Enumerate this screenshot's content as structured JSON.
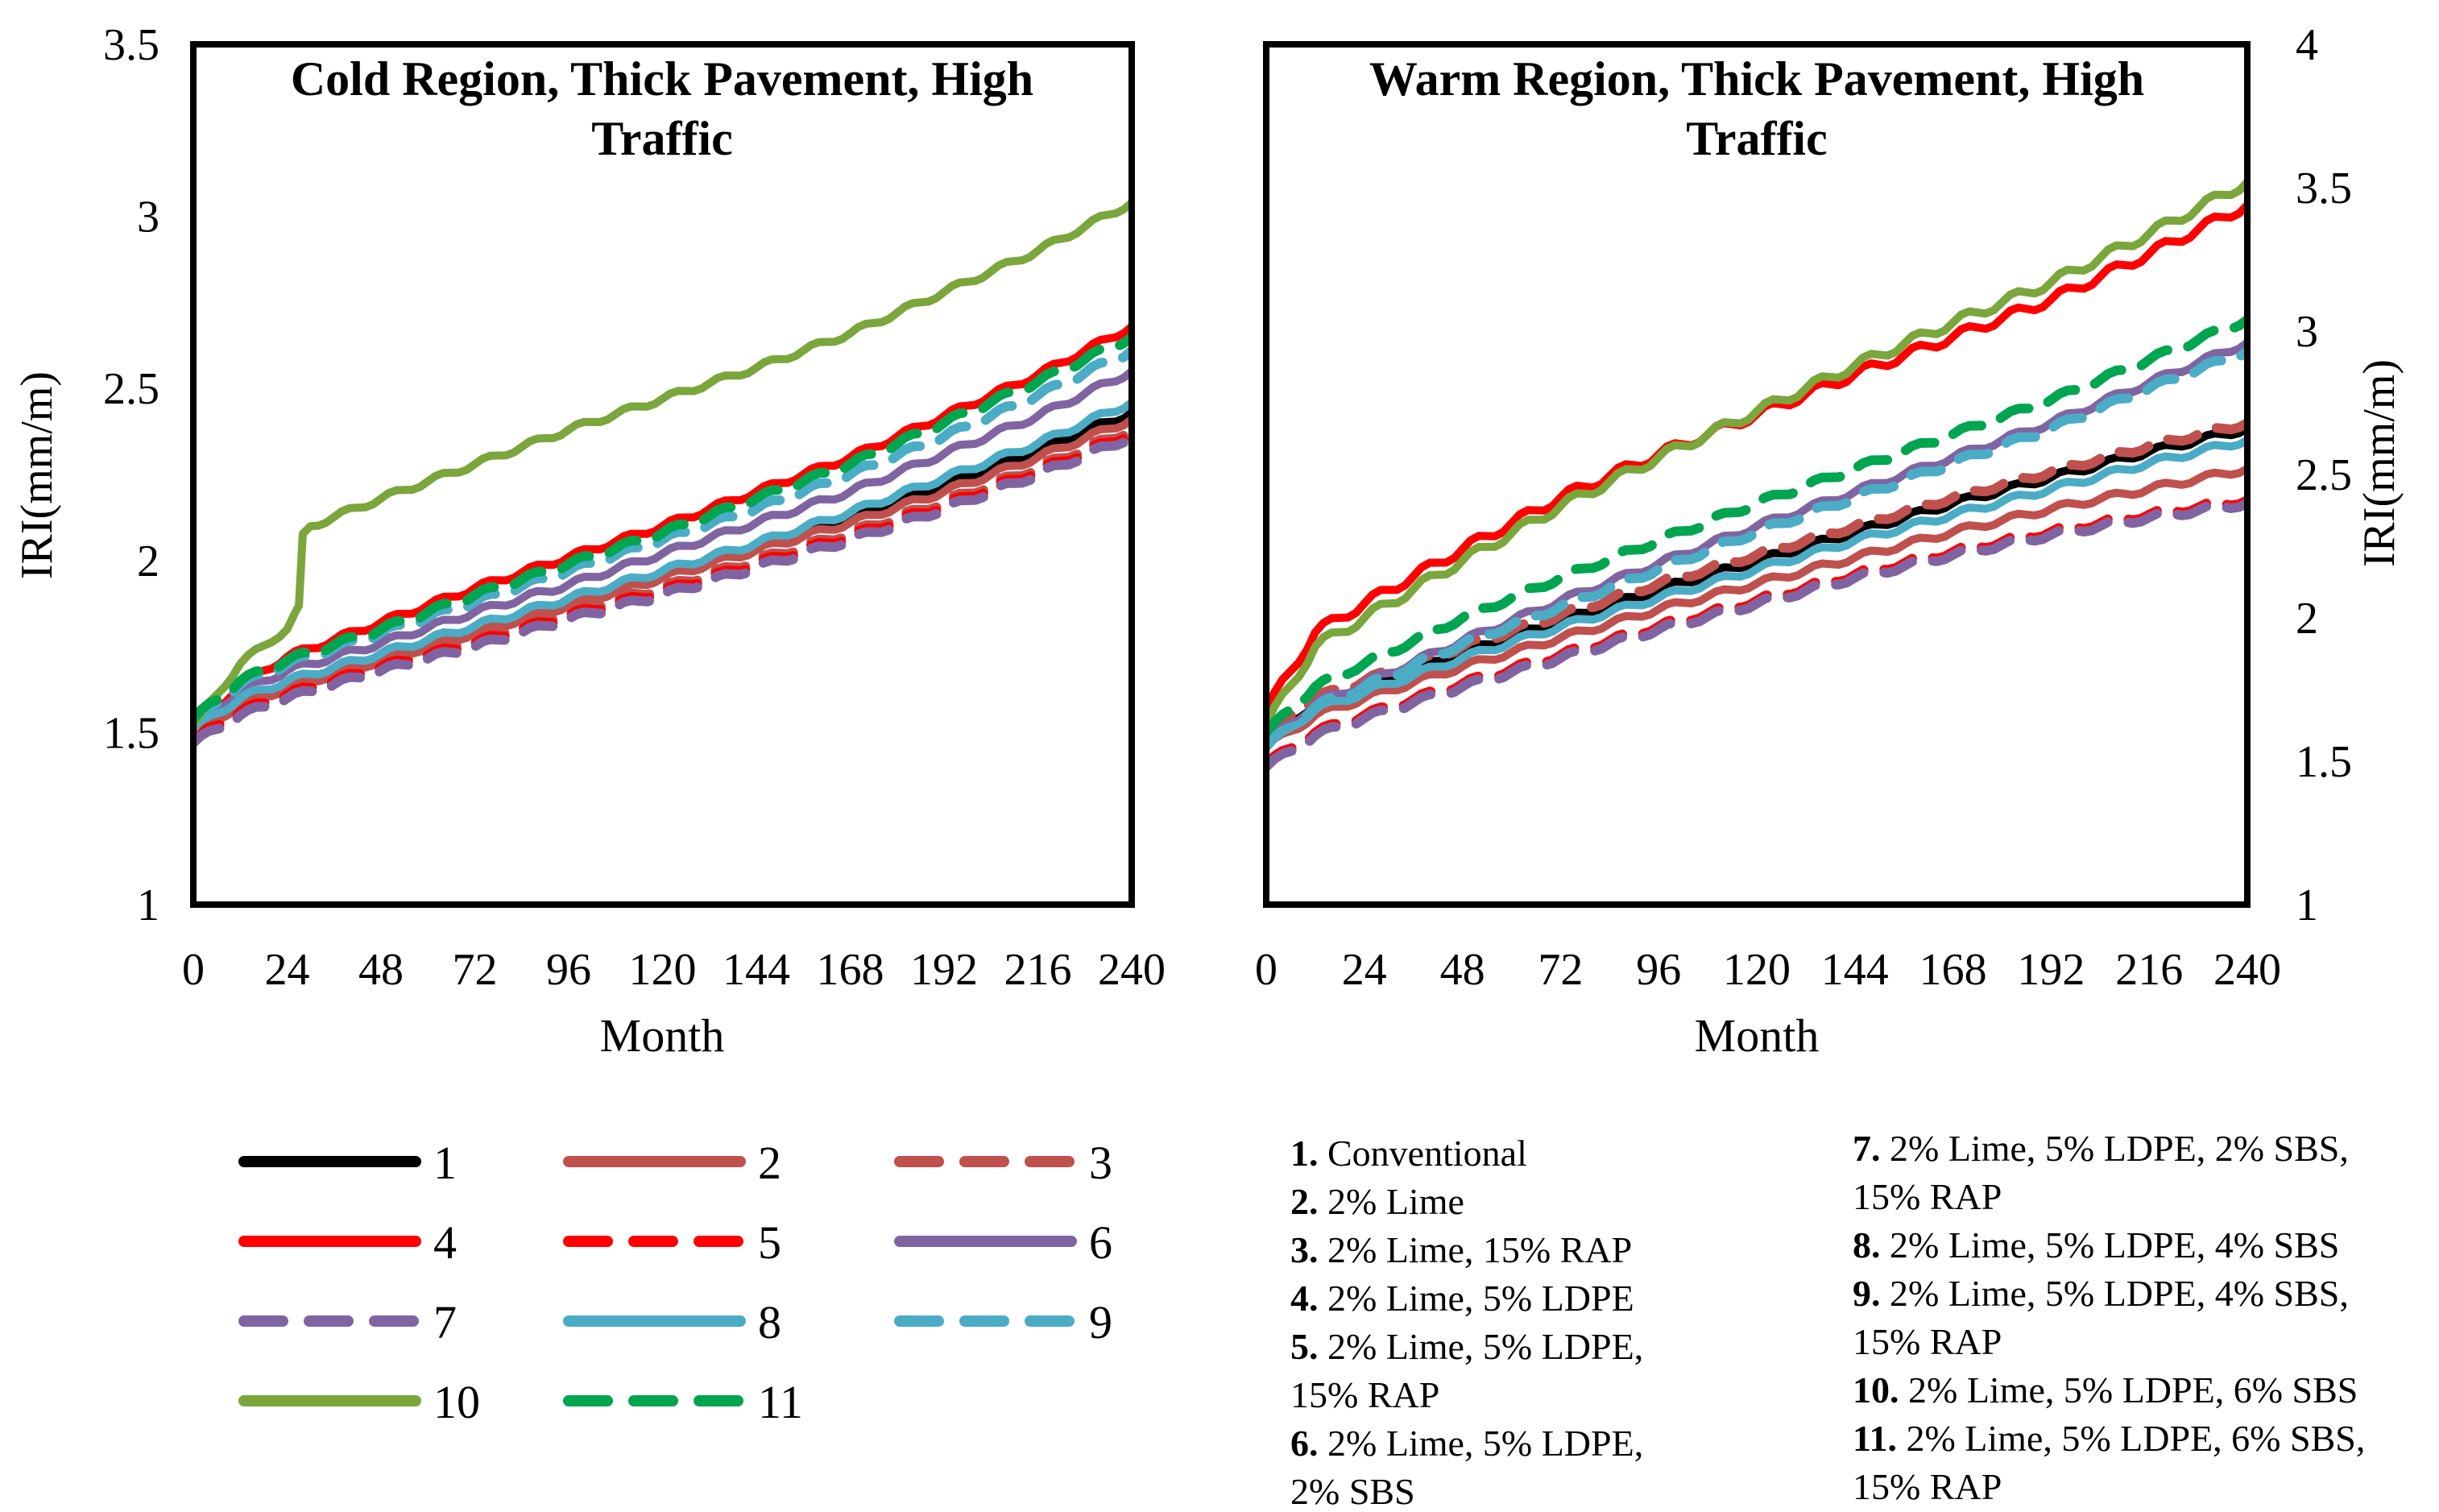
{
  "page": {
    "background": "#ffffff"
  },
  "chart_data": [
    {
      "type": "line",
      "title": "Cold Region, Thick Pavement, High Traffic",
      "title_lines": [
        "Cold Region, Thick Pavement, High",
        "Traffic"
      ],
      "xlabel": "Month",
      "ylabel": "IRI(mm/m)",
      "xlim": [
        0,
        240
      ],
      "ylim": [
        1,
        3.5
      ],
      "xticks": [
        0,
        24,
        48,
        72,
        96,
        120,
        144,
        168,
        192,
        216,
        240
      ],
      "ytick_values": [
        1,
        1.5,
        2,
        2.5,
        3,
        3.5
      ],
      "ytick_labels": [
        "1",
        "1.5",
        "2",
        "2.5",
        "3",
        "3.5"
      ],
      "y_axis_side": "left",
      "grid": false,
      "wiggle": 0.009,
      "series": [
        {
          "num": 1,
          "color": "#000000",
          "style": "solid",
          "x": [
            0,
            12,
            24,
            48,
            72,
            96,
            120,
            144,
            168,
            192,
            216,
            240
          ],
          "y": [
            1.49,
            1.59,
            1.64,
            1.72,
            1.8,
            1.88,
            1.96,
            2.04,
            2.13,
            2.22,
            2.32,
            2.43
          ]
        },
        {
          "num": 2,
          "color": "#C0504D",
          "style": "solid",
          "x": [
            0,
            12,
            24,
            48,
            72,
            96,
            120,
            144,
            168,
            192,
            216,
            240
          ],
          "y": [
            1.5,
            1.58,
            1.63,
            1.71,
            1.79,
            1.87,
            1.95,
            2.03,
            2.11,
            2.2,
            2.3,
            2.41
          ]
        },
        {
          "num": 3,
          "color": "#C0504D",
          "style": "dashed",
          "x": [
            0,
            12,
            24,
            48,
            72,
            96,
            120,
            144,
            168,
            192,
            216,
            240
          ],
          "y": [
            1.49,
            1.57,
            1.62,
            1.7,
            1.77,
            1.85,
            1.92,
            2.0,
            2.08,
            2.17,
            2.27,
            2.38
          ]
        },
        {
          "num": 4,
          "color": "#FF0000",
          "style": "solid",
          "x": [
            0,
            12,
            24,
            48,
            72,
            96,
            120,
            144,
            168,
            192,
            216,
            240
          ],
          "y": [
            1.5,
            1.64,
            1.72,
            1.82,
            1.92,
            2.01,
            2.1,
            2.2,
            2.3,
            2.42,
            2.54,
            2.68
          ]
        },
        {
          "num": 5,
          "color": "#FF0000",
          "style": "dashed",
          "x": [
            0,
            12,
            24,
            48,
            72,
            96,
            120,
            144,
            168,
            192,
            216,
            240
          ],
          "y": [
            1.48,
            1.56,
            1.61,
            1.69,
            1.76,
            1.84,
            1.91,
            1.99,
            2.07,
            2.16,
            2.26,
            2.37
          ]
        },
        {
          "num": 6,
          "color": "#8064A2",
          "style": "solid",
          "x": [
            0,
            12,
            24,
            48,
            72,
            96,
            120,
            144,
            168,
            192,
            216,
            240
          ],
          "y": [
            1.52,
            1.62,
            1.68,
            1.76,
            1.85,
            1.93,
            2.02,
            2.11,
            2.2,
            2.31,
            2.42,
            2.55
          ]
        },
        {
          "num": 7,
          "color": "#8064A2",
          "style": "dashed",
          "x": [
            0,
            12,
            24,
            48,
            72,
            96,
            120,
            144,
            168,
            192,
            216,
            240
          ],
          "y": [
            1.47,
            1.55,
            1.6,
            1.68,
            1.75,
            1.83,
            1.9,
            1.98,
            2.06,
            2.15,
            2.25,
            2.36
          ]
        },
        {
          "num": 8,
          "color": "#4BACC6",
          "style": "solid",
          "x": [
            0,
            12,
            24,
            48,
            72,
            96,
            120,
            144,
            168,
            192,
            216,
            240
          ],
          "y": [
            1.51,
            1.6,
            1.65,
            1.73,
            1.81,
            1.89,
            1.97,
            2.05,
            2.14,
            2.24,
            2.34,
            2.46
          ]
        },
        {
          "num": 9,
          "color": "#4BACC6",
          "style": "dashed",
          "x": [
            0,
            12,
            24,
            48,
            72,
            96,
            120,
            144,
            168,
            192,
            216,
            240
          ],
          "y": [
            1.53,
            1.64,
            1.7,
            1.79,
            1.88,
            1.97,
            2.06,
            2.15,
            2.25,
            2.36,
            2.48,
            2.61
          ]
        },
        {
          "num": 10,
          "color": "#7AA63C",
          "style": "solid",
          "x": [
            0,
            12,
            20,
            24,
            27,
            28,
            30,
            48,
            72,
            96,
            120,
            144,
            168,
            192,
            216,
            240
          ],
          "y": [
            1.52,
            1.7,
            1.77,
            1.8,
            1.86,
            2.07,
            2.1,
            2.18,
            2.28,
            2.38,
            2.47,
            2.56,
            2.66,
            2.78,
            2.9,
            3.04
          ]
        },
        {
          "num": 11,
          "color": "#00A550",
          "style": "dashed",
          "x": [
            0,
            12,
            24,
            48,
            72,
            96,
            120,
            144,
            168,
            192,
            216,
            240
          ],
          "y": [
            1.54,
            1.65,
            1.71,
            1.8,
            1.9,
            1.99,
            2.08,
            2.18,
            2.28,
            2.4,
            2.52,
            2.65
          ]
        }
      ]
    },
    {
      "type": "line",
      "title": "Warm Region, Thick Pavement, High Traffic",
      "title_lines": [
        "Warm Region, Thick Pavement, High",
        "Traffic"
      ],
      "xlabel": "Month",
      "ylabel": "IRI(mm/m)",
      "xlim": [
        0,
        240
      ],
      "ylim": [
        1,
        4
      ],
      "xticks": [
        0,
        24,
        48,
        72,
        96,
        120,
        144,
        168,
        192,
        216,
        240
      ],
      "ytick_values": [
        1,
        1.5,
        2,
        2.5,
        3,
        3.5,
        4
      ],
      "ytick_labels": [
        "1",
        "1.5",
        "2",
        "2.5",
        "3",
        "3.5",
        "4"
      ],
      "y_axis_side": "right",
      "grid": false,
      "wiggle": 0.011,
      "series": [
        {
          "num": 1,
          "color": "#000000",
          "style": "solid",
          "x": [
            0,
            12,
            24,
            48,
            72,
            96,
            120,
            144,
            168,
            192,
            216,
            240
          ],
          "y": [
            1.58,
            1.7,
            1.76,
            1.88,
            1.99,
            2.1,
            2.2,
            2.3,
            2.4,
            2.49,
            2.58,
            2.66
          ]
        },
        {
          "num": 2,
          "color": "#C0504D",
          "style": "solid",
          "x": [
            0,
            12,
            24,
            48,
            72,
            96,
            120,
            144,
            168,
            192,
            216,
            240
          ],
          "y": [
            1.55,
            1.66,
            1.72,
            1.83,
            1.93,
            2.03,
            2.12,
            2.21,
            2.3,
            2.38,
            2.45,
            2.52
          ]
        },
        {
          "num": 3,
          "color": "#C0504D",
          "style": "dashed",
          "x": [
            0,
            12,
            24,
            48,
            72,
            96,
            120,
            144,
            168,
            192,
            216,
            240
          ],
          "y": [
            1.6,
            1.72,
            1.78,
            1.9,
            2.01,
            2.12,
            2.22,
            2.32,
            2.42,
            2.51,
            2.6,
            2.68
          ]
        },
        {
          "num": 4,
          "color": "#FF0000",
          "style": "solid",
          "wiggle": 0.018,
          "x": [
            0,
            12,
            24,
            48,
            72,
            96,
            120,
            144,
            168,
            192,
            216,
            240
          ],
          "y": [
            1.68,
            1.95,
            2.05,
            2.24,
            2.42,
            2.57,
            2.71,
            2.85,
            2.98,
            3.11,
            3.27,
            3.44
          ]
        },
        {
          "num": 5,
          "color": "#FF0000",
          "style": "dashed",
          "x": [
            0,
            12,
            24,
            48,
            72,
            96,
            120,
            144,
            168,
            192,
            216,
            240
          ],
          "y": [
            1.49,
            1.6,
            1.66,
            1.77,
            1.87,
            1.97,
            2.06,
            2.15,
            2.23,
            2.3,
            2.36,
            2.41
          ]
        },
        {
          "num": 6,
          "color": "#8064A2",
          "style": "solid",
          "x": [
            0,
            12,
            24,
            48,
            72,
            96,
            120,
            144,
            168,
            192,
            216,
            240
          ],
          "y": [
            1.56,
            1.7,
            1.77,
            1.92,
            2.06,
            2.19,
            2.32,
            2.44,
            2.56,
            2.68,
            2.82,
            2.96
          ]
        },
        {
          "num": 7,
          "color": "#8064A2",
          "style": "dashed",
          "x": [
            0,
            12,
            24,
            48,
            72,
            96,
            120,
            144,
            168,
            192,
            216,
            240
          ],
          "y": [
            1.48,
            1.59,
            1.65,
            1.76,
            1.86,
            1.96,
            2.05,
            2.14,
            2.22,
            2.29,
            2.35,
            2.4
          ]
        },
        {
          "num": 8,
          "color": "#4BACC6",
          "style": "solid",
          "x": [
            0,
            12,
            24,
            48,
            72,
            96,
            120,
            144,
            168,
            192,
            216,
            240
          ],
          "y": [
            1.56,
            1.68,
            1.74,
            1.86,
            1.97,
            2.07,
            2.17,
            2.27,
            2.36,
            2.45,
            2.54,
            2.62
          ]
        },
        {
          "num": 9,
          "color": "#4BACC6",
          "style": "dashed",
          "x": [
            0,
            12,
            24,
            48,
            72,
            96,
            120,
            144,
            168,
            192,
            216,
            240
          ],
          "y": [
            1.55,
            1.69,
            1.76,
            1.91,
            2.04,
            2.17,
            2.3,
            2.42,
            2.54,
            2.66,
            2.8,
            2.93
          ]
        },
        {
          "num": 10,
          "color": "#7AA63C",
          "style": "solid",
          "wiggle": 0.018,
          "x": [
            0,
            12,
            24,
            48,
            72,
            96,
            120,
            144,
            168,
            192,
            216,
            240
          ],
          "y": [
            1.63,
            1.9,
            2.0,
            2.2,
            2.39,
            2.56,
            2.72,
            2.88,
            3.03,
            3.17,
            3.34,
            3.52
          ]
        },
        {
          "num": 11,
          "color": "#00A550",
          "style": "dashed",
          "x": [
            0,
            12,
            24,
            48,
            72,
            96,
            120,
            144,
            168,
            192,
            216,
            240
          ],
          "y": [
            1.6,
            1.76,
            1.84,
            2.0,
            2.14,
            2.27,
            2.4,
            2.52,
            2.64,
            2.76,
            2.9,
            3.04
          ]
        }
      ]
    }
  ],
  "legend": {
    "columns": 3,
    "items": [
      {
        "label": "1",
        "color": "#000000",
        "style": "solid"
      },
      {
        "label": "2",
        "color": "#C0504D",
        "style": "solid"
      },
      {
        "label": "3",
        "color": "#C0504D",
        "style": "dashed"
      },
      {
        "label": "4",
        "color": "#FF0000",
        "style": "solid"
      },
      {
        "label": "5",
        "color": "#FF0000",
        "style": "dashed"
      },
      {
        "label": "6",
        "color": "#8064A2",
        "style": "solid"
      },
      {
        "label": "7",
        "color": "#8064A2",
        "style": "dashed"
      },
      {
        "label": "8",
        "color": "#4BACC6",
        "style": "solid"
      },
      {
        "label": "9",
        "color": "#4BACC6",
        "style": "dashed"
      },
      {
        "label": "10",
        "color": "#7AA63C",
        "style": "solid"
      },
      {
        "label": "11",
        "color": "#00A550",
        "style": "dashed"
      }
    ]
  },
  "descriptions": {
    "left": [
      {
        "b": "1.",
        "t": "Conventional"
      },
      {
        "b": "2.",
        "t": "2% Lime"
      },
      {
        "b": "3.",
        "t": "2% Lime, 15% RAP"
      },
      {
        "b": "4.",
        "t": "2% Lime, 5% LDPE"
      },
      {
        "b": "5.",
        "t": "2% Lime, 5% LDPE,"
      },
      {
        "t": "15% RAP"
      },
      {
        "b": "6.",
        "t": "2% Lime, 5% LDPE,"
      },
      {
        "t": "2% SBS"
      }
    ],
    "right": [
      {
        "b": "7.",
        "t": "2% Lime, 5% LDPE, 2% SBS,"
      },
      {
        "t": "15% RAP"
      },
      {
        "b": "8.",
        "t": "2% Lime, 5% LDPE, 4% SBS"
      },
      {
        "b": "9.",
        "t": "2% Lime, 5% LDPE, 4% SBS,"
      },
      {
        "t": "15% RAP"
      },
      {
        "b": "10.",
        "t": "2% Lime, 5% LDPE, 6% SBS"
      },
      {
        "b": "11.",
        "t": "2% Lime, 5% LDPE, 6% SBS,"
      },
      {
        "t": "15% RAP"
      }
    ]
  }
}
